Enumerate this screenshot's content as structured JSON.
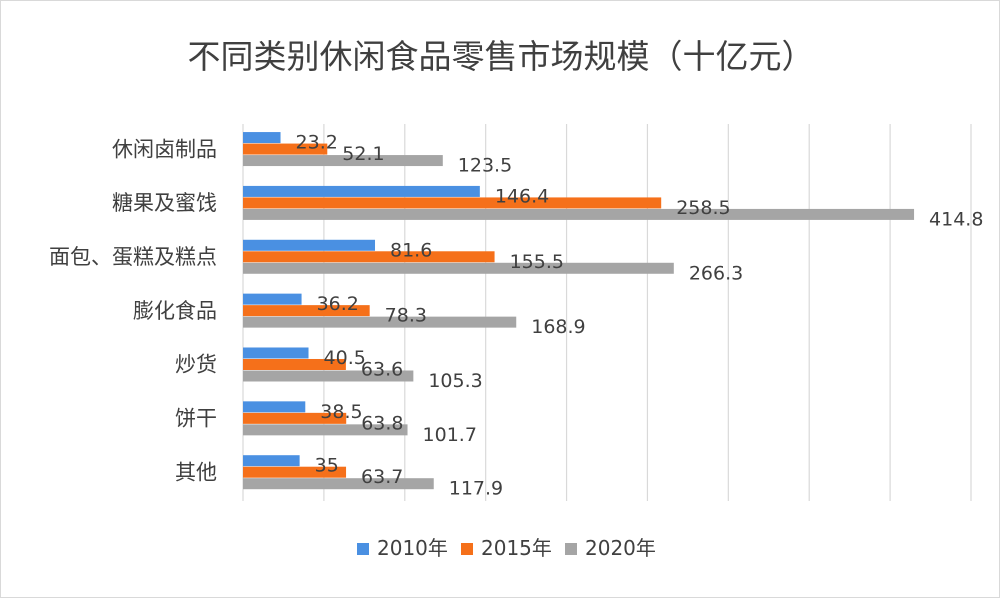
{
  "chart_data": {
    "type": "bar",
    "orientation": "horizontal",
    "title": "不同类别休闲食品零售市场规模（十亿元）",
    "categories": [
      "休闲卤制品",
      "糖果及蜜饯",
      "面包、蛋糕及糕点",
      "膨化食品",
      "炒货",
      "饼干",
      "其他"
    ],
    "series": [
      {
        "name": "2010年",
        "color": "#4a90e2",
        "values": [
          23.2,
          146.4,
          81.6,
          36.2,
          40.5,
          38.5,
          35
        ]
      },
      {
        "name": "2015年",
        "color": "#f5701a",
        "values": [
          52.1,
          258.5,
          155.5,
          78.3,
          63.6,
          63.8,
          63.7
        ]
      },
      {
        "name": "2020年",
        "color": "#a5a5a5",
        "values": [
          123.5,
          414.8,
          266.3,
          168.9,
          105.3,
          101.7,
          117.9
        ]
      }
    ],
    "xlim": [
      0,
      450
    ],
    "grid": true,
    "legend_position": "bottom"
  }
}
